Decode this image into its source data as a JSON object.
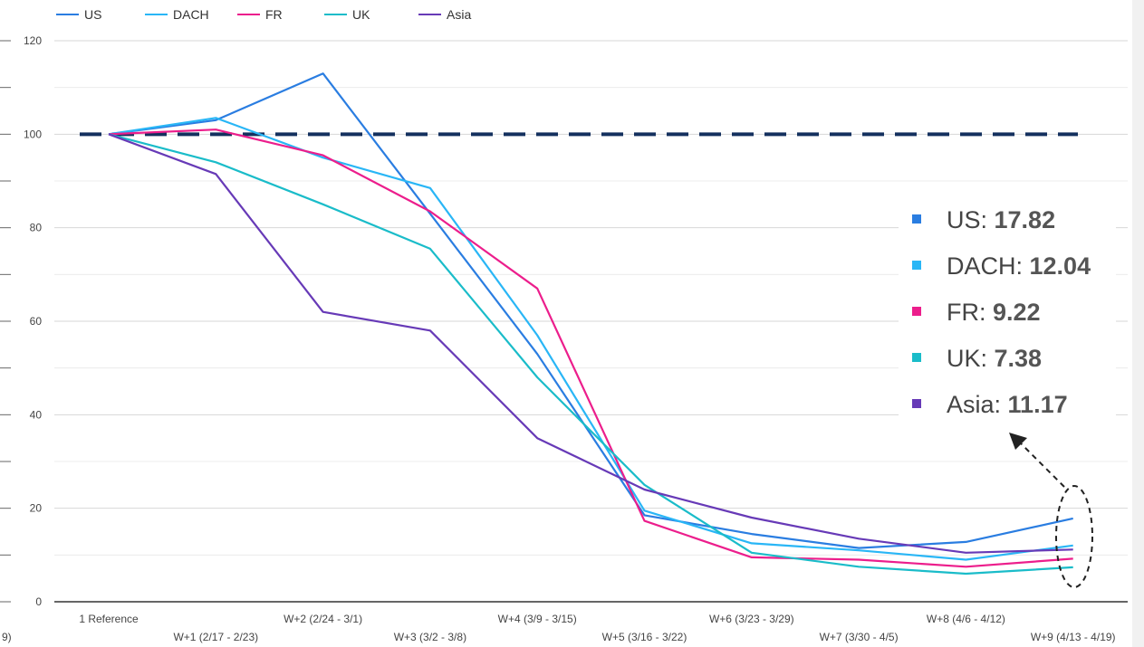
{
  "chart_data": {
    "type": "line",
    "categories": [
      "1 Reference",
      "W+1 (2/17 - 2/23)",
      "W+2 (2/24 - 3/1)",
      "W+3 (3/2 - 3/8)",
      "W+4 (3/9 - 3/15)",
      "W+5 (3/16 - 3/22)",
      "W+6 (3/23 - 3/29)",
      "W+7 (3/30 - 4/5)",
      "W+8 (4/6 - 4/12)",
      "W+9 (4/13 - 4/19)"
    ],
    "left_cut_label": "9)",
    "series": [
      {
        "name": "US",
        "color": "#2a7de1",
        "values": [
          100,
          103,
          113,
          83,
          53,
          18.5,
          14.5,
          11.5,
          12.8,
          17.82
        ]
      },
      {
        "name": "DACH",
        "color": "#29b6f6",
        "values": [
          100,
          103.5,
          95,
          88.5,
          57,
          19.5,
          12.5,
          11,
          9,
          12.04
        ]
      },
      {
        "name": "FR",
        "color": "#ec1e8c",
        "values": [
          100,
          101,
          95.5,
          83.5,
          67,
          17.3,
          9.5,
          9,
          7.5,
          9.22
        ]
      },
      {
        "name": "UK",
        "color": "#1abcc9",
        "values": [
          100,
          94,
          85,
          75.5,
          48,
          25,
          10.5,
          7.5,
          6,
          7.38
        ]
      },
      {
        "name": "Asia",
        "color": "#673ab7",
        "values": [
          100,
          91.5,
          62,
          58,
          35,
          24,
          18,
          13.5,
          10.5,
          11.17
        ]
      }
    ],
    "reference_line": 100,
    "ylim": [
      0,
      120
    ],
    "yticks": [
      0,
      20,
      40,
      60,
      80,
      100,
      120
    ],
    "grid": true,
    "legend_position": "top-left",
    "callout": {
      "items": [
        {
          "label": "US: ",
          "value": "17.82",
          "color": "#2a7de1"
        },
        {
          "label": "DACH: ",
          "value": "12.04",
          "color": "#29b6f6"
        },
        {
          "label": "FR: ",
          "value": "9.22",
          "color": "#ec1e8c"
        },
        {
          "label": "UK: ",
          "value": "7.38",
          "color": "#1abcc9"
        },
        {
          "label": "Asia: ",
          "value": "11.17",
          "color": "#673ab7"
        }
      ]
    }
  }
}
